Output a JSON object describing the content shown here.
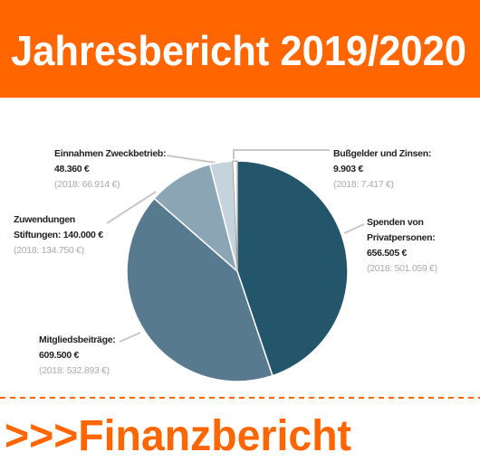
{
  "chart_data": {
    "type": "pie",
    "title": "Jahresbericht 2019/2020",
    "categories": [
      "Spenden von Privatpersonen:",
      "Mitgliedsbeiträge:",
      "Zuwendungen Stiftungen:",
      "Einnahmen Zweckbetrieb:",
      "Bußgelder und Zinsen:"
    ],
    "values": [
      656505,
      609500,
      140000,
      48360,
      9903
    ],
    "value_labels": [
      "656.505 €",
      "609.500 €",
      "140.000 €",
      "48.360 €",
      "9.903 €"
    ],
    "prior_year_labels": [
      "(2018: 501.059 €)",
      "(2018: 532.893 €)",
      "(2018: 134.750 €)",
      "(2018: 66.914 €)",
      "(2018: 7.417 €)"
    ],
    "colors": [
      "#23566b",
      "#587a8f",
      "#8ba5b5",
      "#c5d4dc",
      "#ffffff"
    ]
  },
  "footer": ">>>Finanzbericht"
}
